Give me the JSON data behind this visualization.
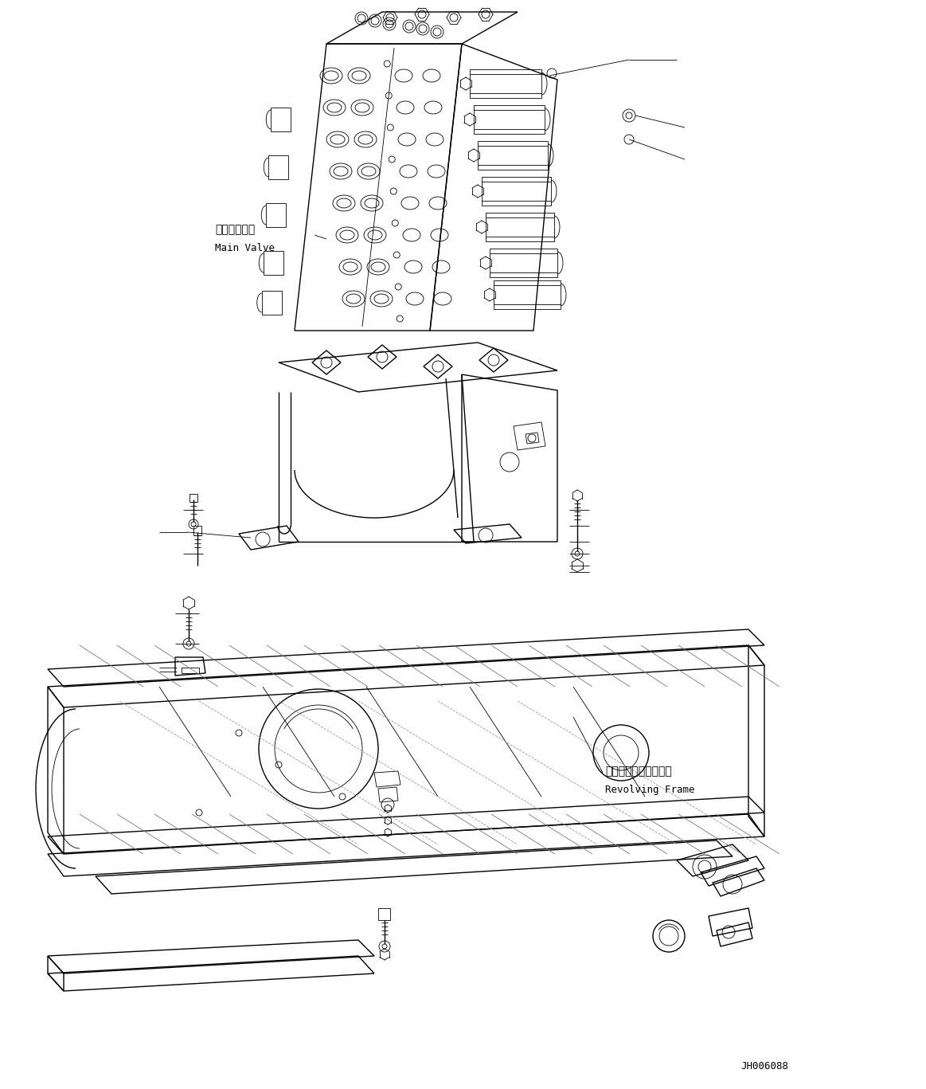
{
  "fig_w": 11.63,
  "fig_h": 13.67,
  "dpi": 100,
  "bg": "#ffffff",
  "lc": "#000000",
  "lw1": 0.6,
  "lw2": 1.0,
  "lw3": 1.4,
  "label_mv_jp": "メインバルブ",
  "label_mv_en": "Main Valve",
  "label_rf_jp": "レボルビングフレーム",
  "label_rf_en": "Revolving Frame",
  "part_no": "JH006088"
}
